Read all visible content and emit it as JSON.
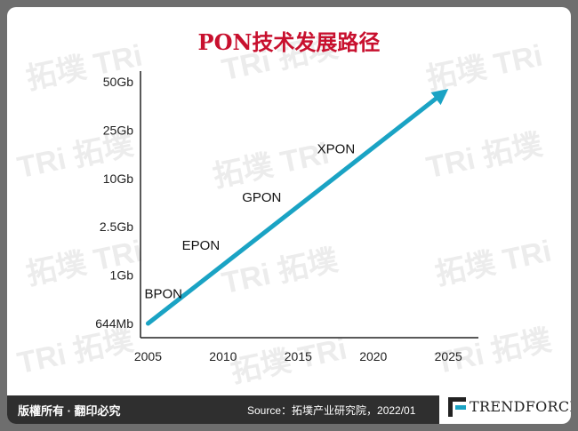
{
  "title": "PON技术发展路径",
  "watermark": {
    "text_cn": "拓墣",
    "text_en": "TRi"
  },
  "footer": {
    "rights": "版權所有 · 翻印必究",
    "source": "Source：拓墣产业研究院，2022/01",
    "logo": "TRENDFORCE"
  },
  "colors": {
    "arrow": "#1aa3c4",
    "title": "#c8102e",
    "footer_bg": "#2f2f2f"
  },
  "chart_data": {
    "type": "line",
    "xlabel": "",
    "ylabel": "",
    "x_ticks": [
      "2005",
      "2010",
      "2015",
      "2020",
      "2025"
    ],
    "y_ticks": [
      "644Mb",
      "1Gb",
      "2.5Gb",
      "10Gb",
      "25Gb",
      "50Gb"
    ],
    "xlim": [
      2004.5,
      2027
    ],
    "trend": {
      "from": {
        "x": 2005,
        "y": "644Mb"
      },
      "to": {
        "x": 2025,
        "y": "50Gb"
      }
    },
    "annotations": [
      {
        "text": "BPON",
        "x": 2005,
        "y": "1Gb"
      },
      {
        "text": "EPON",
        "x": 2007.5,
        "y": "2.5Gb"
      },
      {
        "text": "GPON",
        "x": 2011.5,
        "y": "10Gb"
      },
      {
        "text": "XPON",
        "x": 2016.5,
        "y": "25Gb"
      }
    ]
  }
}
